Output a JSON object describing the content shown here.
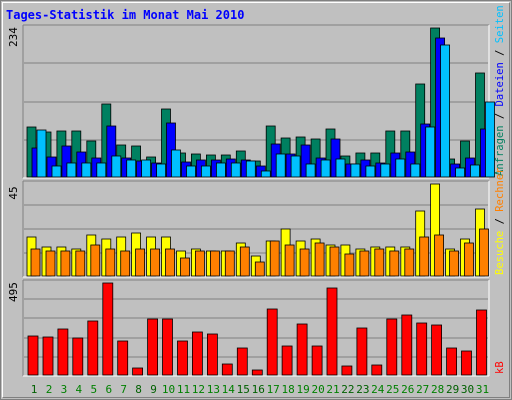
{
  "title": "Tages-Statistik im Monat Mai 2010",
  "chart_data": {
    "type": "bar",
    "days": [
      "1",
      "2",
      "3",
      "4",
      "5",
      "6",
      "7",
      "8",
      "9",
      "10",
      "11",
      "12",
      "13",
      "14",
      "15",
      "16",
      "17",
      "18",
      "19",
      "20",
      "21",
      "22",
      "23",
      "24",
      "25",
      "26",
      "27",
      "28",
      "29",
      "30",
      "31"
    ],
    "weekend_days": [
      "1",
      "8",
      "9",
      "15",
      "16",
      "22",
      "23",
      "29",
      "30"
    ],
    "colors": {
      "weekday": "#008000",
      "weekend": "#006000"
    },
    "panels": [
      {
        "max_label": "234",
        "max": 234,
        "right_labels": [
          {
            "text": "Anfragen",
            "color": "#008060"
          },
          {
            "text": " / ",
            "color": "#000000"
          },
          {
            "text": "Dateien",
            "color": "#0000ff"
          },
          {
            "text": " / ",
            "color": "#000000"
          },
          {
            "text": "Seiten",
            "color": "#00c0ff"
          }
        ],
        "series": [
          {
            "name": "Anfragen",
            "color": "#008060",
            "values": [
              79,
              71,
              72,
              72,
              57,
              114,
              51,
              48,
              31,
              107,
              38,
              36,
              35,
              35,
              41,
              25,
              80,
              62,
              63,
              60,
              75,
              33,
              37,
              37,
              73,
              72,
              146,
              234,
              29,
              57,
              164
            ]
          },
          {
            "name": "Dateien",
            "color": "#0000ff",
            "values": [
              45,
              31,
              49,
              40,
              30,
              80,
              30,
              25,
              22,
              85,
              24,
              27,
              27,
              28,
              27,
              18,
              52,
              36,
              50,
              30,
              59,
              20,
              27,
              22,
              37,
              40,
              84,
              219,
              21,
              30,
              75
            ]
          },
          {
            "name": "Seiten",
            "color": "#00c0ff",
            "values": [
              74,
              18,
              22,
              22,
              22,
              33,
              26,
              26,
              20,
              43,
              17,
              17,
              22,
              22,
              25,
              10,
              36,
              33,
              21,
              27,
              28,
              21,
              17,
              20,
              28,
              20,
              79,
              207,
              14,
              19,
              118
            ]
          }
        ]
      },
      {
        "max_label": "45",
        "max": 45,
        "right_labels": [
          {
            "text": "Besuche",
            "color": "#ffff00"
          },
          {
            "text": " / ",
            "color": "#000000"
          },
          {
            "text": "Rechner",
            "color": "#ff8000"
          }
        ],
        "series": [
          {
            "name": "Besuche",
            "color": "#ffff00",
            "values": [
              19,
              14,
              14,
              13,
              20,
              18,
              19,
              21,
              19,
              19,
              12,
              13,
              12,
              12,
              16,
              10,
              17,
              23,
              17,
              18,
              15,
              15,
              13,
              14,
              14,
              14,
              32,
              45,
              13,
              18,
              33
            ]
          },
          {
            "name": "Rechner",
            "color": "#ff8000",
            "values": [
              13,
              12,
              12,
              12,
              15,
              13,
              12,
              13,
              13,
              13,
              9,
              12,
              12,
              12,
              14,
              7,
              17,
              15,
              13,
              16,
              14,
              11,
              12,
              13,
              12,
              13,
              19,
              20,
              12,
              16,
              23
            ]
          }
        ]
      },
      {
        "max_label": "495",
        "max": 495,
        "right_labels": [
          {
            "text": "kB",
            "color": "#ff0000"
          }
        ],
        "series": [
          {
            "name": "kB",
            "color": "#ff0000",
            "values": [
              208,
              203,
              248,
              198,
              293,
              495,
              182,
              38,
              299,
              301,
              184,
              230,
              222,
              59,
              144,
              29,
              354,
              155,
              272,
              154,
              470,
              49,
              253,
              52,
              302,
              324,
              278,
              268,
              146,
              130,
              348
            ]
          }
        ]
      }
    ]
  }
}
